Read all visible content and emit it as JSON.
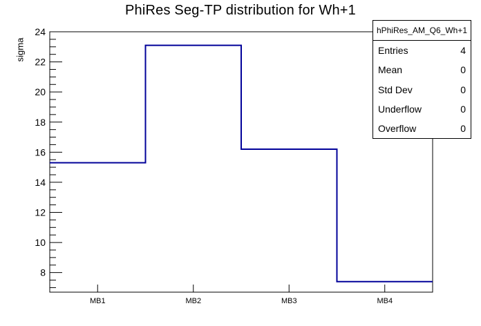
{
  "title": "PhiRes Seg-TP distribution for Wh+1",
  "chart_data": {
    "type": "bar",
    "style": "root-histogram-step-outline",
    "title": "PhiRes Seg-TP distribution for Wh+1",
    "categories": [
      "MB1",
      "MB2",
      "MB3",
      "MB4"
    ],
    "values": [
      15.3,
      23.1,
      16.2,
      7.4
    ],
    "xlabel": "",
    "ylabel": "sigma",
    "ylim": [
      6.7,
      24
    ],
    "ytick_labels": [
      8,
      10,
      12,
      14,
      16,
      18,
      20,
      22,
      24
    ],
    "ytick_major_step": 2,
    "ytick_minor_step": 0.5,
    "grid": false,
    "legend_position": "none",
    "line_color": "#000099",
    "frame_color": "#000000",
    "text_color": "#000000"
  },
  "stats_box": {
    "header": "hPhiRes_AM_Q6_Wh+1",
    "rows": [
      {
        "label": "Entries",
        "value": "4"
      },
      {
        "label": "Mean",
        "value": "0"
      },
      {
        "label": "Std Dev",
        "value": "0"
      },
      {
        "label": "Underflow",
        "value": "0"
      },
      {
        "label": "Overflow",
        "value": "0"
      }
    ]
  }
}
